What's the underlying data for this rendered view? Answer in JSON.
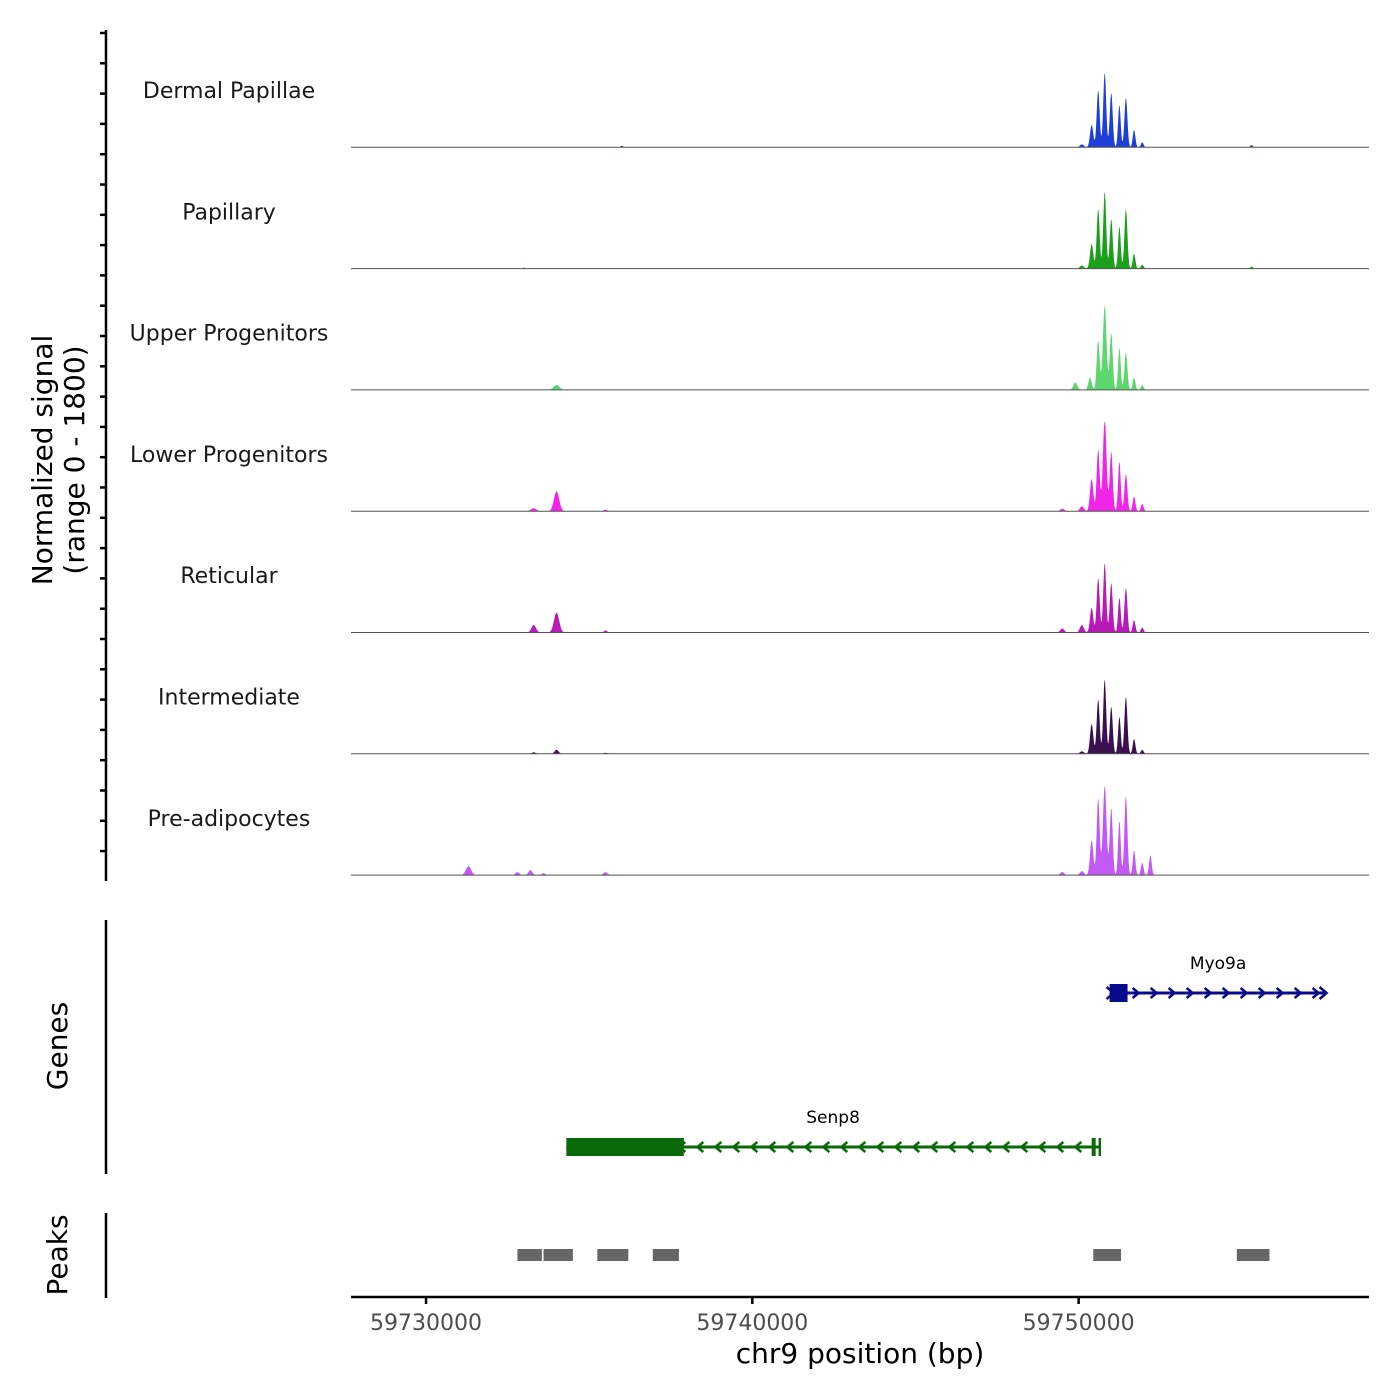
{
  "chart_data": {
    "type": "coverage",
    "chromosome": "chr9",
    "xlabel": "chr9 position (bp)",
    "xlim": [
      59727700,
      59758900
    ],
    "x_ticks": [
      59730000,
      59740000,
      59750000
    ],
    "x_tick_labels": [
      "59730000",
      "59740000",
      "59750000"
    ],
    "coverage": {
      "ylabel_line1": "Normalized signal",
      "ylabel_line2": "(range 0 - 1800)",
      "ylim": [
        0,
        1800
      ],
      "tracks": [
        {
          "name": "Dermal Papillae",
          "color": "#1e40d8",
          "peaks": [
            [
              59736000,
              30,
              40
            ],
            [
              59750100,
              60,
              60
            ],
            [
              59750400,
              450,
              50
            ],
            [
              59750600,
              1150,
              45
            ],
            [
              59750800,
              1500,
              45
            ],
            [
              59751000,
              1100,
              45
            ],
            [
              59751250,
              850,
              40
            ],
            [
              59751450,
              1000,
              45
            ],
            [
              59751700,
              350,
              40
            ],
            [
              59751950,
              100,
              40
            ],
            [
              59755300,
              45,
              40
            ]
          ]
        },
        {
          "name": "Papillary",
          "color": "#1aa01a",
          "peaks": [
            [
              59733000,
              20,
              40
            ],
            [
              59750100,
              60,
              60
            ],
            [
              59750400,
              500,
              50
            ],
            [
              59750600,
              1200,
              45
            ],
            [
              59750800,
              1550,
              45
            ],
            [
              59751000,
              1000,
              45
            ],
            [
              59751250,
              850,
              40
            ],
            [
              59751450,
              1200,
              45
            ],
            [
              59751700,
              300,
              40
            ],
            [
              59751950,
              80,
              40
            ],
            [
              59755300,
              40,
              40
            ]
          ]
        },
        {
          "name": "Upper Progenitors",
          "color": "#5dd66e",
          "peaks": [
            [
              59734000,
              100,
              90
            ],
            [
              59749900,
              150,
              60
            ],
            [
              59750350,
              250,
              50
            ],
            [
              59750600,
              1000,
              45
            ],
            [
              59750800,
              1700,
              55
            ],
            [
              59751000,
              1150,
              45
            ],
            [
              59751250,
              850,
              40
            ],
            [
              59751450,
              750,
              45
            ],
            [
              59751700,
              250,
              40
            ],
            [
              59751950,
              100,
              40
            ]
          ]
        },
        {
          "name": "Lower Progenitors",
          "color": "#f025e8",
          "peaks": [
            [
              59733300,
              60,
              80
            ],
            [
              59734000,
              400,
              80
            ],
            [
              59735500,
              30,
              50
            ],
            [
              59749500,
              50,
              60
            ],
            [
              59750100,
              100,
              60
            ],
            [
              59750400,
              650,
              50
            ],
            [
              59750600,
              1250,
              45
            ],
            [
              59750800,
              1850,
              55
            ],
            [
              59751000,
              1200,
              45
            ],
            [
              59751250,
              1000,
              40
            ],
            [
              59751450,
              750,
              45
            ],
            [
              59751700,
              300,
              40
            ],
            [
              59751950,
              150,
              40
            ]
          ]
        },
        {
          "name": "Reticular",
          "color": "#b81ab8",
          "peaks": [
            [
              59733300,
              150,
              70
            ],
            [
              59734000,
              400,
              80
            ],
            [
              59735500,
              40,
              50
            ],
            [
              59749500,
              80,
              60
            ],
            [
              59750100,
              150,
              60
            ],
            [
              59750400,
              500,
              50
            ],
            [
              59750600,
              1100,
              45
            ],
            [
              59750800,
              1400,
              45
            ],
            [
              59751000,
              1000,
              45
            ],
            [
              59751250,
              700,
              40
            ],
            [
              59751450,
              900,
              45
            ],
            [
              59751700,
              250,
              40
            ],
            [
              59751950,
              100,
              40
            ]
          ]
        },
        {
          "name": "Intermediate",
          "color": "#3a1050",
          "peaks": [
            [
              59733300,
              30,
              60
            ],
            [
              59734000,
              80,
              60
            ],
            [
              59735500,
              20,
              50
            ],
            [
              59750100,
              50,
              60
            ],
            [
              59750400,
              600,
              50
            ],
            [
              59750600,
              1100,
              45
            ],
            [
              59750800,
              1500,
              45
            ],
            [
              59751000,
              950,
              45
            ],
            [
              59751250,
              750,
              40
            ],
            [
              59751450,
              1150,
              45
            ],
            [
              59751700,
              300,
              40
            ],
            [
              59751950,
              80,
              40
            ]
          ]
        },
        {
          "name": "Pre-adipocytes",
          "color": "#c259f5",
          "peaks": [
            [
              59731300,
              180,
              80
            ],
            [
              59732800,
              60,
              60
            ],
            [
              59733200,
              100,
              60
            ],
            [
              59733600,
              40,
              50
            ],
            [
              59735500,
              60,
              60
            ],
            [
              59749500,
              60,
              60
            ],
            [
              59750100,
              80,
              60
            ],
            [
              59750400,
              700,
              50
            ],
            [
              59750600,
              1550,
              45
            ],
            [
              59750800,
              1800,
              55
            ],
            [
              59751000,
              1350,
              45
            ],
            [
              59751250,
              1100,
              40
            ],
            [
              59751450,
              1600,
              45
            ],
            [
              59751700,
              500,
              40
            ],
            [
              59751950,
              250,
              40
            ],
            [
              59752200,
              400,
              40
            ]
          ]
        }
      ]
    },
    "genes": {
      "ylabel": "Genes",
      "items": [
        {
          "name": "Myo9a",
          "strand": "+",
          "color": "#0a0a8c",
          "start": 59750950,
          "end": 59757600,
          "exons": [
            [
              59750950,
              59751500
            ]
          ]
        },
        {
          "name": "Senp8",
          "strand": "-",
          "color": "#0a6a0a",
          "start": 59734300,
          "end": 59750650,
          "exons": [
            [
              59734300,
              59737900
            ],
            [
              59750400,
              59750500
            ]
          ]
        }
      ]
    },
    "peaks": {
      "ylabel": "Peaks",
      "color": "#666666",
      "regions": [
        [
          59732800,
          59733550
        ],
        [
          59733600,
          59734500
        ],
        [
          59735250,
          59736200
        ],
        [
          59736950,
          59737750
        ],
        [
          59750450,
          59751300
        ],
        [
          59754850,
          59755850
        ]
      ]
    }
  }
}
